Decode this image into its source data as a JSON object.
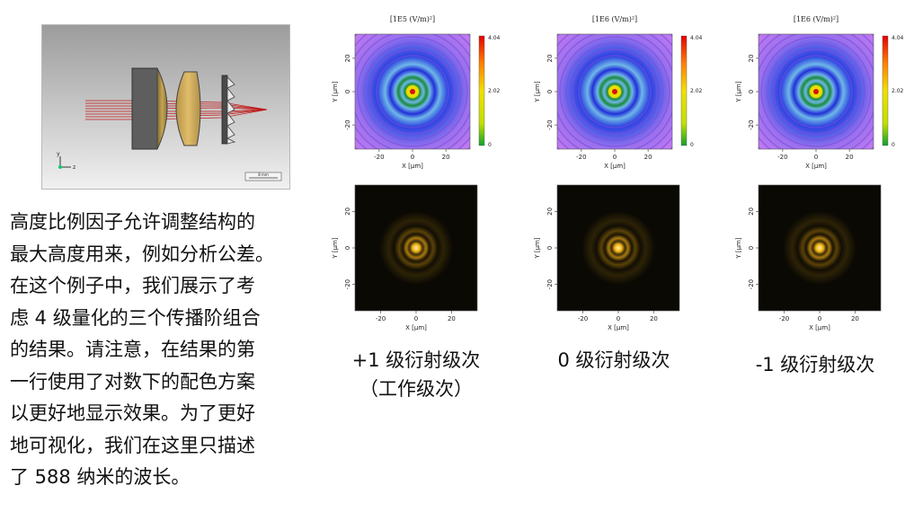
{
  "setup_image": {
    "axis_labels": {
      "y": "y",
      "z": "z"
    },
    "scalebar_label": "8 mm"
  },
  "description_lines": [
    "高度比例因子允许调整结构的",
    "最大高度用来，例如分析公差。",
    "在这个例子中，我们展示了考",
    "虑 4 级量化的三个传播阶组合",
    "的结果。请注意，在结果的第",
    "一行使用了对数下的配色方案",
    "以更好地显示效果。为了更好",
    "地可视化，我们在这里只描述",
    "了 588 纳米的波长。"
  ],
  "captions": [
    {
      "line1": "+1 级衍射级次",
      "line2": "（工作级次）"
    },
    {
      "line1": "0 级衍射级次",
      "line2": ""
    },
    {
      "line1": "-1 级衍射级次",
      "line2": ""
    }
  ],
  "plots_top": [
    {
      "unit_text": "[1E5 (V/m)²]",
      "colorbar_ticks": [
        "4.04",
        "2.02",
        "0"
      ]
    },
    {
      "unit_text": "[1E6 (V/m)²]",
      "colorbar_ticks": [
        "4.04",
        "2.02",
        "0"
      ]
    },
    {
      "unit_text": "[1E6 (V/m)²]",
      "colorbar_ticks": [
        "4.04",
        "2.02",
        "0"
      ]
    }
  ],
  "axes": {
    "x_label": "X [µm]",
    "y_label": "Y [µm]",
    "x_ticks": [
      "-20",
      "0",
      "20"
    ],
    "y_ticks": [
      "20",
      "0",
      "-20"
    ]
  },
  "colors": {
    "log_outer": "#c77bf0",
    "log_ring_blue": "#2230d8",
    "log_cyan": "#6fb7e8",
    "log_green": "#1a8a3a",
    "log_yellow": "#e8e000",
    "log_red": "#d81010",
    "dark_bg": "#0b0904",
    "dark_spot": "#f2b316"
  }
}
